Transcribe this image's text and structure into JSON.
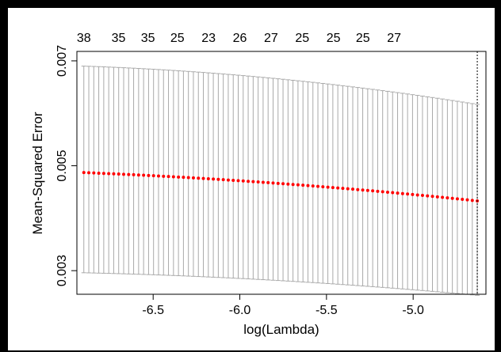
{
  "chart_data": {
    "type": "scatter",
    "title": "",
    "xlabel": "log(Lambda)",
    "ylabel": "Mean-Squared Error",
    "xlim": [
      -6.94,
      -4.58
    ],
    "ylim": [
      0.00255,
      0.00718
    ],
    "x_ticks": [
      "-6.5",
      "-6.0",
      "-5.5",
      "-5.0"
    ],
    "y_ticks": [
      "0.003",
      "0.005",
      "0.007"
    ],
    "top_axis": {
      "labels": [
        "38",
        "35",
        "35",
        "25",
        "23",
        "26",
        "27",
        "25",
        "25",
        "25",
        "27"
      ],
      "positions": [
        -6.9,
        -6.7,
        -6.53,
        -6.36,
        -6.18,
        -6.0,
        -5.82,
        -5.64,
        -5.46,
        -5.29,
        -5.11
      ]
    },
    "x_start": -6.9,
    "x_end": -4.63,
    "n_points": 80,
    "mse_start": 0.00487,
    "mse_end": 0.00433,
    "upper_start": 0.0069,
    "upper_end": 0.00617,
    "lower_start": 0.00296,
    "lower_end": 0.00253,
    "vline_x": -4.63,
    "point_color": "#ff0000",
    "errorbar_color": "#a9a9a9"
  }
}
